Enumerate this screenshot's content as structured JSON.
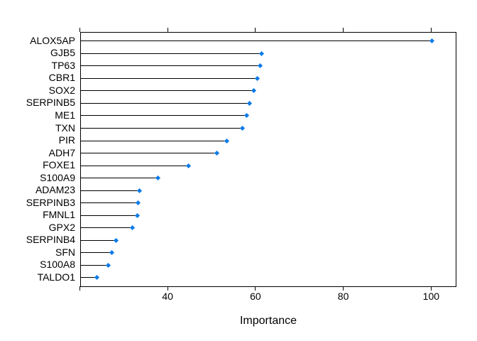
{
  "chart_data": {
    "type": "scatter",
    "subtype": "dotchart-lollipop",
    "title": "",
    "xlabel": "Importance",
    "ylabel": "",
    "categories": [
      "ALOX5AP",
      "GJB5",
      "TP63",
      "CBR1",
      "SOX2",
      "SERPINB5",
      "ME1",
      "TXN",
      "PIR",
      "ADH7",
      "FOXE1",
      "S100A9",
      "ADAM23",
      "SERPINB3",
      "FMNL1",
      "GPX2",
      "SERPINB4",
      "SFN",
      "S100A8",
      "TALDO1"
    ],
    "values": [
      100.0,
      61.2,
      60.9,
      60.2,
      59.4,
      58.5,
      57.8,
      56.8,
      53.3,
      51.0,
      44.6,
      37.7,
      33.5,
      33.1,
      33.0,
      31.8,
      28.1,
      27.2,
      26.4,
      23.8
    ],
    "xlim": [
      20.1,
      105.6
    ],
    "x_tick_values": [
      20,
      40,
      60,
      80,
      100
    ],
    "x_tick_labels": [
      "",
      "40",
      "60",
      "80",
      "100"
    ],
    "legend": null,
    "grid": false,
    "marker_color": "#0C7BE8",
    "line_color": "#000000"
  }
}
